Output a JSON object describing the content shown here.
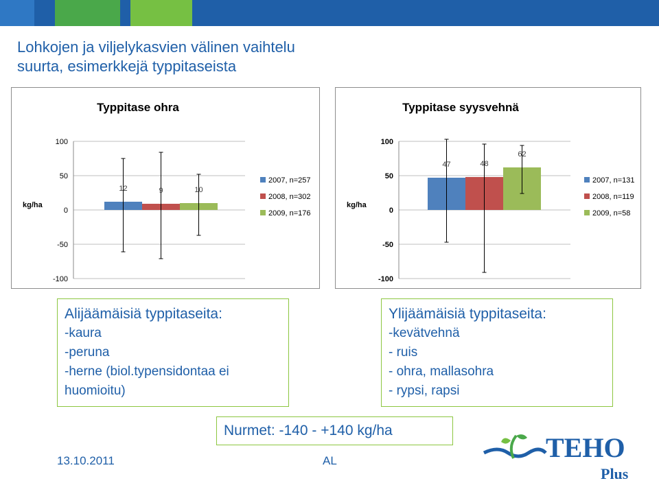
{
  "slide": {
    "title_line1": "Lohkojen ja viljelykasvien välinen vaihtelu",
    "title_line2": "suurta, esimerkkejä typpitaseista"
  },
  "deficit_box": {
    "heading": "Alijäämäisiä typpitaseita:",
    "items": [
      "-kaura",
      "-peruna",
      "-herne (biol.typensidontaa ei",
      "huomioitu)"
    ]
  },
  "surplus_box": {
    "heading": "Ylijäämäisiä typpitaseita:",
    "items": [
      "-kevätvehnä",
      "- ruis",
      "- ohra, mallasohra",
      "- rypsi, rapsi"
    ]
  },
  "nurmet": "Nurmet: -140 - +140 kg/ha",
  "footer": {
    "date": "13.10.2011",
    "author": "AL"
  },
  "logo": {
    "text": "TEHO",
    "sub": "Plus"
  },
  "colors": {
    "series": [
      "#4f81bd",
      "#c0504d",
      "#9bbb59"
    ],
    "text": "#1f5fa8",
    "box_border": "#8cc63f"
  },
  "chart_data": [
    {
      "type": "bar",
      "title": "Typpitase ohra",
      "ylabel": "kg/ha",
      "ylim": [
        -100,
        100
      ],
      "yticks": [
        "100",
        "50",
        "0",
        "-50",
        "-100"
      ],
      "grid": true,
      "legend": "right",
      "series": [
        {
          "name": "2007, n=257",
          "value": 12,
          "label": "12",
          "err_high": 75,
          "err_low": -61
        },
        {
          "name": "2008, n=302",
          "value": 9,
          "label": "9",
          "err_high": 84,
          "err_low": -71
        },
        {
          "name": "2009, n=176",
          "value": 10,
          "label": "10",
          "err_high": 52,
          "err_low": -37
        }
      ]
    },
    {
      "type": "bar",
      "title": "Typpitase syysvehnä",
      "ylabel": "kg/ha",
      "ylim": [
        -100,
        100
      ],
      "yticks": [
        "100",
        "50",
        "0",
        "-50",
        "-100"
      ],
      "grid": true,
      "legend": "right",
      "series": [
        {
          "name": "2007, n=131",
          "value": 47,
          "label": "47",
          "err_high": 103,
          "err_low": -47
        },
        {
          "name": "2008, n=119",
          "value": 48,
          "label": "48",
          "err_high": 96,
          "err_low": -91
        },
        {
          "name": "2009, n=58",
          "value": 62,
          "label": "62",
          "err_high": 94,
          "err_low": 24
        }
      ]
    }
  ]
}
